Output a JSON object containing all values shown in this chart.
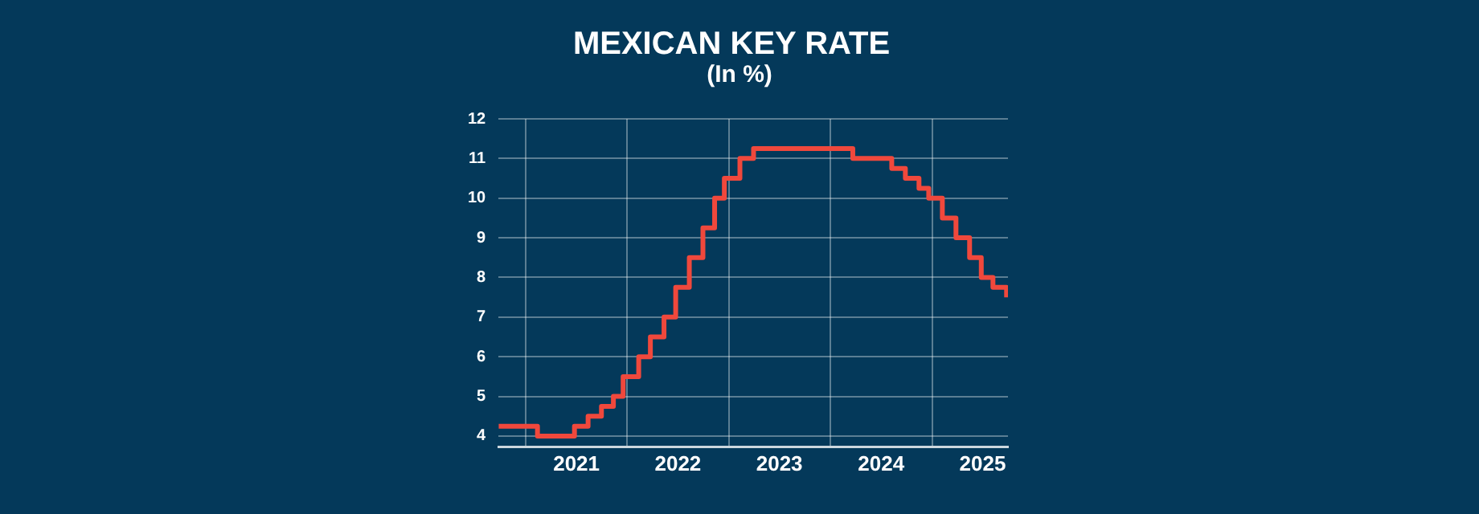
{
  "chart_data": {
    "type": "step",
    "title": "MEXICAN KEY RATE",
    "subtitle": "(In %)",
    "x": [
      "2020-09-25",
      "2021-02-12",
      "2021-06-25",
      "2021-08-13",
      "2021-09-30",
      "2021-11-12",
      "2021-12-17",
      "2022-02-11",
      "2022-03-25",
      "2022-05-13",
      "2022-06-24",
      "2022-08-12",
      "2022-09-30",
      "2022-11-11",
      "2022-12-16",
      "2023-02-10",
      "2023-03-31",
      "2024-03-22",
      "2024-08-09",
      "2024-09-27",
      "2024-11-15",
      "2024-12-20",
      "2025-02-07",
      "2025-03-28",
      "2025-05-16",
      "2025-06-27",
      "2025-08-08",
      "2025-09-26"
    ],
    "series": [
      {
        "color": "#f0483c",
        "values": [
          4.25,
          4.0,
          4.25,
          4.5,
          4.75,
          5.0,
          5.5,
          6.0,
          6.5,
          7.0,
          7.75,
          8.5,
          9.25,
          10.0,
          10.5,
          11.0,
          11.25,
          11.0,
          10.75,
          10.5,
          10.25,
          10.0,
          9.5,
          9.0,
          8.5,
          8.0,
          7.75,
          7.5
        ]
      }
    ],
    "xlim": [
      "2020-09-25",
      "2025-10-01"
    ],
    "xticks": [
      {
        "value": "2021-01-01",
        "label": null
      },
      {
        "value": "2021-07-02",
        "label": "2021"
      },
      {
        "value": "2022-01-01",
        "label": null
      },
      {
        "value": "2022-07-02",
        "label": "2022"
      },
      {
        "value": "2023-01-01",
        "label": null
      },
      {
        "value": "2023-07-02",
        "label": "2023"
      },
      {
        "value": "2024-01-01",
        "label": null
      },
      {
        "value": "2024-07-02",
        "label": "2024"
      },
      {
        "value": "2025-01-01",
        "label": null
      },
      {
        "value": "2025-07-02",
        "label": "2025"
      }
    ],
    "ylim": [
      3.72,
      12
    ],
    "yticks": [
      4,
      5,
      6,
      7,
      8,
      9,
      10,
      11,
      12
    ],
    "grid": true,
    "legend": false,
    "line_style": "solid",
    "marker": "none"
  }
}
